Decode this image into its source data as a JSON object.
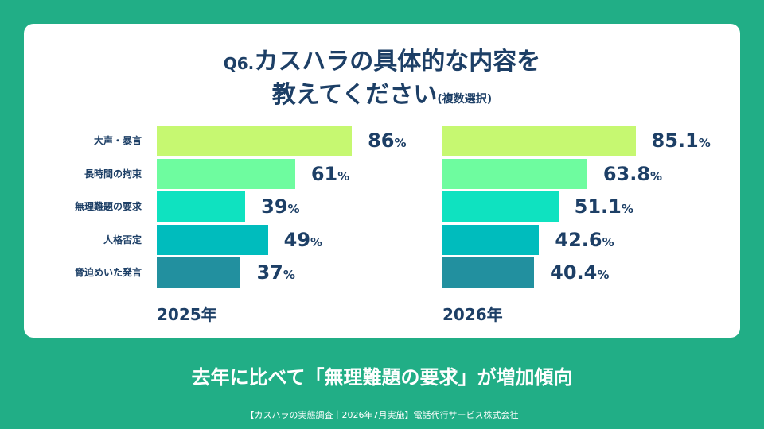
{
  "title": {
    "prefix": "Q6.",
    "line1": "カスハラの具体的な内容を",
    "line2": "教えてください",
    "note": "(複数選択)"
  },
  "summary": "去年に比べて「無理難題の要求」が増加傾向",
  "footer": "【カスハラの実態調査｜2026年7月実施】電話代行サービス株式会社",
  "percent_sign": "%",
  "chart_data": [
    {
      "type": "bar",
      "orientation": "horizontal",
      "year_label": "2025年",
      "categories": [
        "大声・暴言",
        "長時間の拘束",
        "無理難題の要求",
        "人格否定",
        "脅迫めいた発言"
      ],
      "values": [
        86,
        61,
        39,
        49,
        37
      ],
      "value_labels": [
        "86",
        "61",
        "39",
        "49",
        "37"
      ],
      "unit": "%",
      "xlim": [
        0,
        100
      ],
      "colors": [
        "#c6f871",
        "#6efc9f",
        "#0fe2c0",
        "#00bcbd",
        "#22909f"
      ],
      "grid": false
    },
    {
      "type": "bar",
      "orientation": "horizontal",
      "year_label": "2026年",
      "categories": [
        "大声・暴言",
        "長時間の拘束",
        "無理難題の要求",
        "人格否定",
        "脅迫めいた発言"
      ],
      "values": [
        85.1,
        63.8,
        51.1,
        42.6,
        40.4
      ],
      "value_labels": [
        "85.1",
        "63.8",
        "51.1",
        "42.6",
        "40.4"
      ],
      "unit": "%",
      "xlim": [
        0,
        100
      ],
      "colors": [
        "#c6f871",
        "#6efc9f",
        "#0fe2c0",
        "#00bcbd",
        "#22909f"
      ],
      "grid": false
    }
  ],
  "colors": {
    "background": "#21ae86",
    "card": "#ffffff",
    "text": "#1d3f66"
  }
}
